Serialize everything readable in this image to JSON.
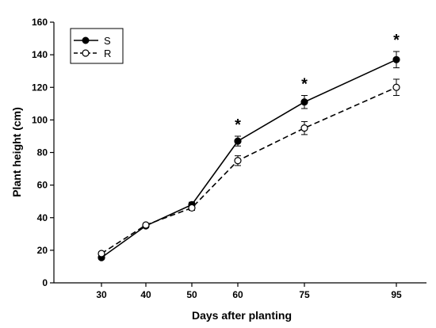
{
  "chart_data": {
    "type": "line",
    "x": [
      30,
      40,
      50,
      60,
      75,
      95
    ],
    "x_tick_labels": [
      "30",
      "40",
      "50",
      "60",
      "75",
      "95"
    ],
    "xlabel": "Days after planting",
    "ylabel": "Plant height (cm)",
    "ylim": [
      0,
      160
    ],
    "y_ticks": [
      0,
      20,
      40,
      60,
      80,
      100,
      120,
      140,
      160
    ],
    "grid": false,
    "legend_position": "top-left",
    "series": [
      {
        "name": "S",
        "marker": "filled-circle",
        "line_style": "solid",
        "color": "#000000",
        "values": [
          15.5,
          35,
          48,
          87,
          111,
          137
        ],
        "errors": [
          1,
          1,
          1.5,
          3,
          4,
          5
        ]
      },
      {
        "name": "R",
        "marker": "open-circle",
        "line_style": "dashed",
        "color": "#000000",
        "values": [
          18,
          35.5,
          46,
          75,
          95,
          120
        ],
        "errors": [
          1,
          1,
          1.5,
          3,
          4,
          5
        ]
      }
    ],
    "annotations": [
      {
        "x": 60,
        "text": "*"
      },
      {
        "x": 75,
        "text": "*"
      },
      {
        "x": 95,
        "text": "*"
      }
    ]
  }
}
